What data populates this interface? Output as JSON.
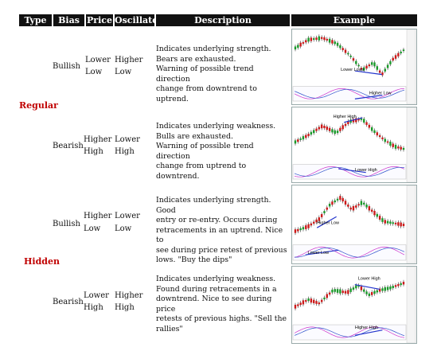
{
  "header": {
    "type": "Type",
    "bias": "Bias",
    "price": "Price",
    "oscillator": "Oscillator",
    "description": "Description",
    "example": "Example"
  },
  "categories": {
    "regular": "Regular",
    "hidden": "Hidden"
  },
  "rows": [
    {
      "bias": "Bullish",
      "price": [
        "Lower",
        "Low"
      ],
      "oscillator": [
        "Higher",
        "Low"
      ],
      "description": [
        "Indicates underlying strength.",
        "Bears are exhausted.",
        "Warning of possible trend direction",
        "change from downtrend to uptrend."
      ],
      "chart_label": "Lower Lows",
      "osc_label": "Higher Low"
    },
    {
      "bias": "Bearish",
      "price": [
        "Higher",
        "High"
      ],
      "oscillator": [
        "Lower",
        "High"
      ],
      "description": [
        "Indicates underlying weakness.",
        "Bulls are exhausted.",
        "Warning of possible trend direction",
        "change from uptrend to downtrend."
      ],
      "chart_label": "Higher High",
      "osc_label": "Lower High"
    },
    {
      "bias": "Bullish",
      "price": [
        "Higher",
        "Low"
      ],
      "oscillator": [
        "Lower",
        "Low"
      ],
      "description": [
        "Indicates underlying strength. Good",
        "entry or re-entry. Occurs during",
        "retracements in an uptrend. Nice to",
        "see during price retest of previous",
        "lows. \"Buy the dips\""
      ],
      "chart_label": "Higher Low",
      "osc_label": "Lower Low"
    },
    {
      "bias": "Bearish",
      "price": [
        "Lower",
        "High"
      ],
      "oscillator": [
        "Higher",
        "High"
      ],
      "description": [
        "Indicates underlying weakness.",
        "Found during retracements in a",
        "downtrend. Nice to see during price",
        "retests of previous highs. \"Sell the",
        "rallies\""
      ],
      "chart_label": "Lower High",
      "osc_label": "Higher High"
    }
  ]
}
